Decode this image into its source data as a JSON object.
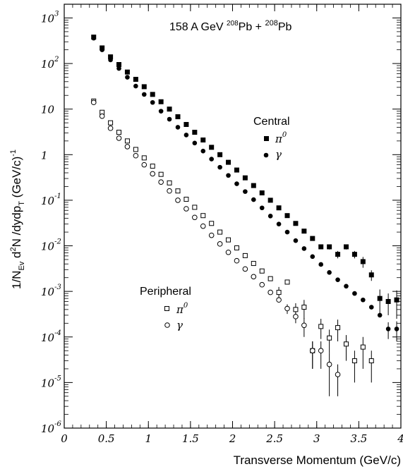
{
  "chart_data": {
    "type": "scatter",
    "title": "158 A GeV ^{208}Pb + ^{208}Pb",
    "title_parts": {
      "lead": "158 A GeV ",
      "sup1": "208",
      "mid": "Pb + ",
      "sup2": "208",
      "tail": "Pb"
    },
    "xlabel": "Transverse Momentum (GeV/c)",
    "ylabel_parts": {
      "a": "1/N",
      "a_sub": "Ev",
      "b": " d",
      "b_sup": "2",
      "c": "N /dydp",
      "c_sub": "T",
      "d": "  (GeV/c)",
      "d_sup": "-1"
    },
    "xlim": [
      0,
      4
    ],
    "ylim": [
      1e-06,
      2000
    ],
    "yscale": "log",
    "grid": false,
    "x_ticks": [
      {
        "v": 0,
        "label": "0"
      },
      {
        "v": 0.5,
        "label": "0.5"
      },
      {
        "v": 1,
        "label": "1"
      },
      {
        "v": 1.5,
        "label": "1.5"
      },
      {
        "v": 2,
        "label": "2"
      },
      {
        "v": 2.5,
        "label": "2.5"
      },
      {
        "v": 3,
        "label": "3"
      },
      {
        "v": 3.5,
        "label": "3.5"
      },
      {
        "v": 4,
        "label": "4"
      }
    ],
    "y_ticks": [
      {
        "v": 1000,
        "base": "10",
        "exp": "3"
      },
      {
        "v": 100,
        "base": "10",
        "exp": "2"
      },
      {
        "v": 10,
        "base": "10",
        "exp": ""
      },
      {
        "v": 1,
        "base": "1",
        "exp": ""
      },
      {
        "v": 0.1,
        "base": "10",
        "exp": "-1"
      },
      {
        "v": 0.01,
        "base": "10",
        "exp": "-2"
      },
      {
        "v": 0.001,
        "base": "10",
        "exp": "-3"
      },
      {
        "v": 0.0001,
        "base": "10",
        "exp": "-4"
      },
      {
        "v": 1e-05,
        "base": "10",
        "exp": "-5"
      },
      {
        "v": 1e-06,
        "base": "10",
        "exp": "-6"
      }
    ],
    "legend": {
      "central_title": "Central",
      "peripheral_title": "Peripheral",
      "pi0_symbol": "π",
      "pi0_sup": "0",
      "gamma_symbol": "γ"
    },
    "series": [
      {
        "group": "Central",
        "particle": "pi0",
        "marker": "square-filled",
        "x": [
          0.35,
          0.45,
          0.55,
          0.65,
          0.75,
          0.85,
          0.95,
          1.05,
          1.15,
          1.25,
          1.35,
          1.45,
          1.55,
          1.65,
          1.75,
          1.85,
          1.95,
          2.05,
          2.15,
          2.25,
          2.35,
          2.45,
          2.55,
          2.65,
          2.75,
          2.85,
          2.95,
          3.05,
          3.15,
          3.25,
          3.35,
          3.45,
          3.55,
          3.65,
          3.75,
          3.85,
          3.95
        ],
        "y": [
          380,
          220,
          140,
          95,
          65,
          45,
          31,
          21,
          14.5,
          10,
          6.8,
          4.6,
          3.1,
          2.1,
          1.45,
          1.0,
          0.68,
          0.46,
          0.31,
          0.21,
          0.145,
          0.1,
          0.068,
          0.046,
          0.031,
          0.021,
          0.0145,
          0.0095,
          0.0095,
          0.0065,
          0.0095,
          0.0065,
          0.0045,
          0.0023,
          0.0007,
          0.0006,
          0.00065
        ],
        "y_err": [
          0,
          0,
          0,
          0,
          0,
          0,
          0,
          0,
          0,
          0,
          0,
          0,
          0,
          0,
          0,
          0,
          0,
          0,
          0,
          0,
          0,
          0,
          0,
          0,
          0,
          0,
          0,
          0.001,
          0.0012,
          0.0012,
          0.0012,
          0.0012,
          0.0012,
          0.0006,
          0.0004,
          0.0003,
          0.0004
        ]
      },
      {
        "group": "Central",
        "particle": "gamma",
        "marker": "circle-filled",
        "x": [
          0.35,
          0.45,
          0.55,
          0.65,
          0.75,
          0.85,
          0.95,
          1.05,
          1.15,
          1.25,
          1.35,
          1.45,
          1.55,
          1.65,
          1.75,
          1.85,
          1.95,
          2.05,
          2.15,
          2.25,
          2.35,
          2.45,
          2.55,
          2.65,
          2.75,
          2.85,
          2.95,
          3.05,
          3.15,
          3.25,
          3.35,
          3.45,
          3.55,
          3.65,
          3.75,
          3.85,
          3.95
        ],
        "y": [
          360,
          200,
          120,
          78,
          50,
          32,
          21,
          14,
          9,
          6,
          4,
          2.7,
          1.8,
          1.2,
          0.8,
          0.53,
          0.35,
          0.23,
          0.155,
          0.103,
          0.068,
          0.045,
          0.03,
          0.02,
          0.013,
          0.0087,
          0.0058,
          0.0039,
          0.0026,
          0.0018,
          0.0013,
          0.0009,
          0.00065,
          0.00045,
          0.0003,
          0.00015,
          0.00015
        ],
        "y_err": [
          0,
          0,
          0,
          0,
          0,
          0,
          0,
          0,
          0,
          0,
          0,
          0,
          0,
          0,
          0,
          0,
          0,
          0,
          0,
          0,
          0,
          0,
          0,
          0,
          0,
          0,
          0,
          0,
          0,
          0,
          0,
          0,
          0,
          0,
          0,
          6e-05,
          7e-05
        ]
      },
      {
        "group": "Peripheral",
        "particle": "pi0",
        "marker": "square-open",
        "x": [
          0.35,
          0.45,
          0.55,
          0.65,
          0.75,
          0.85,
          0.95,
          1.05,
          1.15,
          1.25,
          1.35,
          1.45,
          1.55,
          1.65,
          1.75,
          1.85,
          1.95,
          2.05,
          2.15,
          2.25,
          2.35,
          2.45,
          2.55,
          2.65,
          2.75,
          2.85,
          2.95,
          3.05,
          3.15,
          3.25,
          3.35,
          3.45,
          3.55,
          3.65
        ],
        "y": [
          15,
          8.5,
          5,
          3.1,
          2.0,
          1.3,
          0.85,
          0.56,
          0.37,
          0.24,
          0.16,
          0.105,
          0.07,
          0.046,
          0.031,
          0.02,
          0.0135,
          0.009,
          0.0061,
          0.0041,
          0.0028,
          0.0019,
          0.00095,
          0.0016,
          0.0004,
          0.00045,
          5e-05,
          0.00017,
          9.5e-05,
          0.00016,
          7e-05,
          3e-05,
          6e-05,
          3e-05
        ],
        "y_err": [
          0,
          0,
          0,
          0,
          0,
          0,
          0,
          0,
          0,
          0,
          0,
          0,
          0,
          0,
          0,
          0,
          0,
          0,
          0,
          0,
          0,
          0,
          0.0003,
          0,
          0.00015,
          0.0002,
          3e-05,
          8e-05,
          5e-05,
          8e-05,
          4e-05,
          2e-05,
          4e-05,
          2e-05
        ]
      },
      {
        "group": "Peripheral",
        "particle": "gamma",
        "marker": "circle-open",
        "x": [
          0.35,
          0.45,
          0.55,
          0.65,
          0.75,
          0.85,
          0.95,
          1.05,
          1.15,
          1.25,
          1.35,
          1.45,
          1.55,
          1.65,
          1.75,
          1.85,
          1.95,
          2.05,
          2.15,
          2.25,
          2.35,
          2.45,
          2.55,
          2.65,
          2.75,
          2.85,
          2.95,
          3.05,
          3.15,
          3.25
        ],
        "y": [
          14,
          7,
          3.8,
          2.3,
          1.5,
          0.95,
          0.6,
          0.38,
          0.25,
          0.16,
          0.1,
          0.065,
          0.042,
          0.027,
          0.017,
          0.011,
          0.0072,
          0.0047,
          0.0031,
          0.0021,
          0.0014,
          0.00095,
          0.00065,
          0.00042,
          0.00028,
          0.00018,
          5e-05,
          5e-05,
          2.5e-05,
          1.5e-05
        ],
        "y_err": [
          0,
          0,
          0,
          0,
          0,
          0,
          0,
          0,
          0,
          0,
          0,
          0,
          0,
          0,
          0,
          0,
          0,
          0,
          0,
          0,
          0,
          0,
          0,
          0.0001,
          8e-05,
          8e-05,
          3e-05,
          3e-05,
          2e-05,
          1e-05
        ]
      }
    ]
  }
}
